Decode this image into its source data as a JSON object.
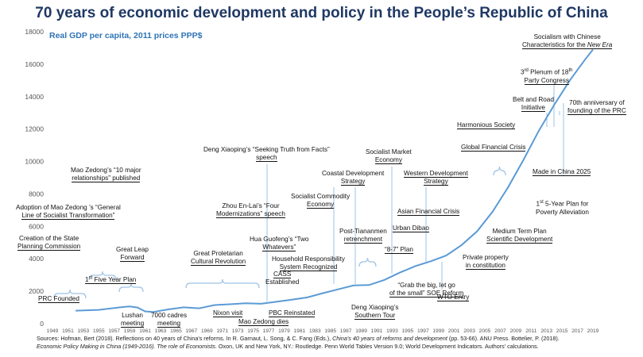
{
  "title": "70 years of economic development and policy in the People’s Republic of China",
  "chart_data": {
    "type": "line",
    "title": "70 years of economic development and policy in the People’s Republic of China",
    "subtitle": "Real GDP per capita, 2011 prices PPP$",
    "ylabel": "Real GDP per capita, 2011 prices PPP$",
    "xlabel": "",
    "ylim": [
      0,
      18000
    ],
    "xlim": [
      1949,
      2019
    ],
    "y_ticks": [
      "0",
      "2000",
      "4000",
      "6000",
      "8000",
      "10000",
      "12000",
      "14000",
      "16000",
      "18000"
    ],
    "x_ticks": [
      "1949",
      "1951",
      "1953",
      "1955",
      "1957",
      "1959",
      "1961",
      "1963",
      "1965",
      "1967",
      "1969",
      "1971",
      "1973",
      "1975",
      "1977",
      "1979",
      "1981",
      "1983",
      "1985",
      "1987",
      "1989",
      "1991",
      "1993",
      "1995",
      "1997",
      "1999",
      "2001",
      "2003",
      "2005",
      "2007",
      "2009",
      "2011",
      "2013",
      "2015",
      "2017",
      "2019"
    ],
    "grid": false,
    "series": [
      {
        "name": "Real GDP per capita",
        "x": [
          1952,
          1955,
          1958,
          1959,
          1960,
          1961,
          1962,
          1964,
          1966,
          1968,
          1970,
          1972,
          1974,
          1976,
          1978,
          1980,
          1982,
          1984,
          1986,
          1988,
          1990,
          1992,
          1994,
          1996,
          1998,
          2000,
          2002,
          2004,
          2006,
          2008,
          2010,
          2012,
          2014,
          2016,
          2018,
          2019
        ],
        "values": [
          800,
          850,
          1020,
          1060,
          1000,
          760,
          720,
          880,
          1010,
          950,
          1150,
          1200,
          1260,
          1230,
          1350,
          1480,
          1620,
          1880,
          2120,
          2360,
          2380,
          2700,
          3150,
          3550,
          3850,
          4200,
          4850,
          5700,
          6900,
          8400,
          10100,
          11900,
          13500,
          15000,
          16300,
          16900
        ]
      }
    ],
    "annotations": [
      {
        "id": "prc-founded",
        "text": "PRC Founded"
      },
      {
        "id": "creation-state-planning",
        "text": "Creation of the State Planning Commission"
      },
      {
        "id": "socialist-transformation",
        "text": "Adoption of Mao Zedong ’s “General Line of Socialist Transformation”"
      },
      {
        "id": "ten-relationships",
        "text": "Mao Zedong’s “10 major relationships” published"
      },
      {
        "id": "first-five-year-plan",
        "text": "1st Five Year Plan"
      },
      {
        "id": "great-leap-forward",
        "text": "Great Leap Forward"
      },
      {
        "id": "lushan-meeting",
        "text": "Lushan meeting"
      },
      {
        "id": "7000-cadres",
        "text": "7000 cadres meeting"
      },
      {
        "id": "cultural-revolution",
        "text": "Great Proletarian Cultural Revolution"
      },
      {
        "id": "nixon-visit",
        "text": "Nixon visit"
      },
      {
        "id": "four-modernizations",
        "text": "Zhou En-Lai’s “Four Modernizations” speech"
      },
      {
        "id": "mao-dies",
        "text": "Mao Zedong dies"
      },
      {
        "id": "pbc-reinstated",
        "text": "PBC Reinstated"
      },
      {
        "id": "cass-established",
        "text": "CASS Established"
      },
      {
        "id": "two-whatevers",
        "text": "Hua Guofeng’s “Two Whatevers”"
      },
      {
        "id": "seeking-truth",
        "text": "Deng Xiaoping’s “Seeking Truth from Facts” speech"
      },
      {
        "id": "household-responsibility",
        "text": "Household Responsibility System Recognized"
      },
      {
        "id": "socialist-commodity",
        "text": "Socialist Commodity Economy"
      },
      {
        "id": "coastal-development",
        "text": "Coastal Development Strategy"
      },
      {
        "id": "post-tiananmen",
        "text": "Post-Tiananmen retrenchment"
      },
      {
        "id": "southern-tour",
        "text": "Deng Xiaoping’s Southern Tour"
      },
      {
        "id": "socialist-market",
        "text": "Socialist Market Economy"
      },
      {
        "id": "eight-seven-plan",
        "text": "“8-7” Plan"
      },
      {
        "id": "grab-the-big",
        "text": "“Grab the big, let go of the small” SOE Reform"
      },
      {
        "id": "urban-dibao",
        "text": "Urban Dibao"
      },
      {
        "id": "asian-financial-crisis",
        "text": "Asian Financial Crisis"
      },
      {
        "id": "western-development",
        "text": "Western Development Strategy"
      },
      {
        "id": "wto-entry",
        "text": "WTO Entry"
      },
      {
        "id": "private-property",
        "text": "Private property in constitution"
      },
      {
        "id": "medium-term-plan",
        "text": "Medium Term Plan Scientific Development"
      },
      {
        "id": "global-financial-crisis",
        "text": "Global Financial Crisis"
      },
      {
        "id": "harmonious-society",
        "text": "Harmonious Society"
      },
      {
        "id": "belt-and-road",
        "text": "Belt and Road Initiative"
      },
      {
        "id": "third-plenum",
        "text": "3rd Plenum of 18th Party Congress"
      },
      {
        "id": "socialism-new-era",
        "text": "Socialism with Chinese Characteristics for the New Era"
      },
      {
        "id": "70th-anniversary",
        "text": "70th anniversary of founding of the PRC"
      },
      {
        "id": "made-in-china",
        "text": "Made in China 2025"
      },
      {
        "id": "poverty-alleviation",
        "text": "1st 5-Year Plan for Poverty Alleviation"
      }
    ]
  },
  "labels": {
    "prc_founded": "PRC Founded",
    "creation_1": "Creation of the State",
    "creation_2": "Planning Commission",
    "transformation_1": "Adoption of Mao Zedong ’s “General",
    "transformation_2": "Line of Socialist Transformation”",
    "relationships_1": "Mao Zedong’s “10 major",
    "relationships_2": "relationships” published",
    "fyp_sup": "st",
    "fyp_num": "1",
    "fyp_rest": " Five Year Plan",
    "leap_1": "Great Leap",
    "leap_2": "Forward",
    "lushan_1": "Lushan",
    "lushan_2": "meeting",
    "cadres_1": "7000 cadres",
    "cadres_2": "meeting",
    "cultural_1": "Great Proletarian",
    "cultural_2": "Cultural Revolution",
    "nixon": "Nixon visit",
    "zhou_1": "Zhou En-Lai’s “Four",
    "zhou_2": "Modernizations” speech",
    "mao_dies": "Mao Zedong dies",
    "pbc": "PBC Reinstated",
    "cass_1": "CASS",
    "cass_2": "Established",
    "hua_1": "Hua Guofeng’s “Two",
    "hua_2": "Whatevers”",
    "deng_truth_1": "Deng Xiaoping’s “Seeking Truth from Facts”",
    "deng_truth_2": "speech",
    "household_1": "Household Responsibility",
    "household_2": "System Recognized",
    "commodity_1": "Socialist Commodity",
    "commodity_2": "Economy",
    "coastal_1": "Coastal Development",
    "coastal_2": "Strategy",
    "tiananmen_1": "Post-Tiananmen",
    "tiananmen_2": "retrenchment",
    "southern_1": "Deng Xiaoping’s",
    "southern_2": "Southern Tour",
    "market_1": "Socialist Market",
    "market_2": "Economy",
    "eight_seven": "“8-7” Plan",
    "grab_1": "“Grab the big, let go",
    "grab_2": "of the small” SOE Reform",
    "dibao": "Urban Dibao",
    "asian": "Asian Financial Crisis",
    "western_1": "Western Development",
    "western_2": "Strategy",
    "wto": "WTO Entry",
    "private_1": "Private property",
    "private_2": "in constitution",
    "medium_1": "Medium Term Plan",
    "medium_2": "Scientific Development",
    "gfc": "Global Financial Crisis",
    "harmonious": "Harmonious Society",
    "belt_1": "Belt and Road",
    "belt_2": "Initiative",
    "plenum_num": "3",
    "plenum_sup": "rd",
    "plenum_rest": " Plenum of 18",
    "plenum_sup2": "th",
    "plenum_2": "Party Congress",
    "newera_1": "Socialism with Chinese",
    "newera_2a": "Characteristics for the ",
    "newera_2b": "New Era",
    "anniv_1": "70th anniversary of",
    "anniv_2": "founding of the PRC",
    "made_china": "Made in China 2025",
    "poverty_num": "1",
    "poverty_sup": "st",
    "poverty_rest": " 5-Year Plan for",
    "poverty_2": "Poverty Alleviation"
  },
  "sources": {
    "line1_a": "Sources: Hofman, Bert (2018). Reflections on 40 years of China's reforms. In R. Garnaut, L. Song, & C. Fang (Eds.), ",
    "line1_b": "China's 40 years of reforms and development",
    "line1_c": " (pp. 53-66). ANU Press. Bottelier, P. (2018).",
    "line2_a": "Economic Policy Making in China (1949-2016). The role of Economists",
    "line2_b": ". Oxon, UK and New York, NY.: Routledge.  Penn World Tables Version 9.0; World Development Indicators. Authors' calculations."
  },
  "colors": {
    "title": "#1f3864",
    "line": "#5b9bd5",
    "subtitle": "#2e74b5",
    "bracket": "#9dc3e6",
    "axis_text": "#555555"
  }
}
